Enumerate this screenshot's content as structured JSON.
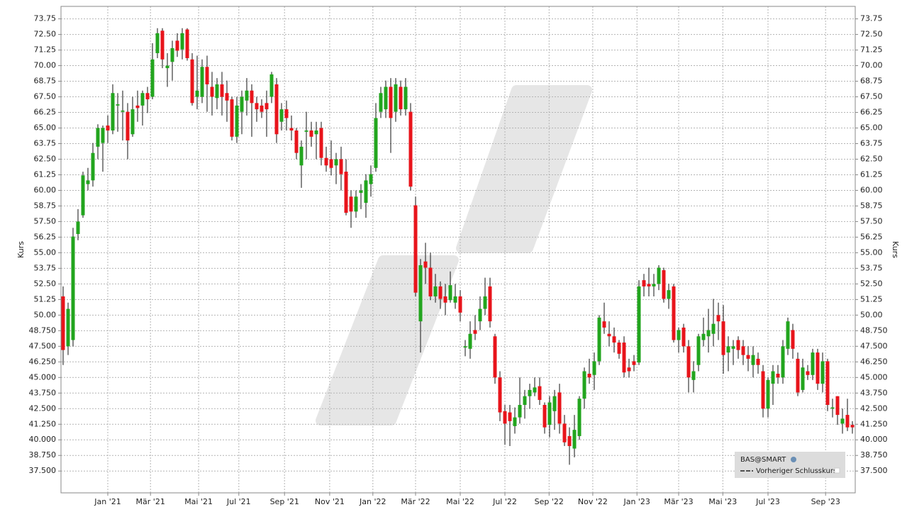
{
  "chart_data": {
    "type": "candlestick",
    "y_label": "Kurs",
    "up_color": "#22a51e",
    "down_color": "#e8141b",
    "grid": true,
    "legend": {
      "source": "BAS@SMART",
      "items": [
        "Vorheriger Schlusskurs"
      ]
    },
    "ylim": [
      35.75,
      74.75
    ],
    "yticks": [
      {
        "value": 37.5,
        "label": "37.500"
      },
      {
        "value": 38.75,
        "label": "38.750"
      },
      {
        "value": 40,
        "label": "40.000"
      },
      {
        "value": 41.25,
        "label": "41.250"
      },
      {
        "value": 42.5,
        "label": "42.500"
      },
      {
        "value": 43.75,
        "label": "43.750"
      },
      {
        "value": 45,
        "label": "45.000"
      },
      {
        "value": 46.25,
        "label": "46.250"
      },
      {
        "value": 47.5,
        "label": "47.500"
      },
      {
        "value": 48.75,
        "label": "48.750"
      },
      {
        "value": 50,
        "label": "50.00"
      },
      {
        "value": 51.25,
        "label": "51.25"
      },
      {
        "value": 52.5,
        "label": "52.50"
      },
      {
        "value": 53.75,
        "label": "53.75"
      },
      {
        "value": 55,
        "label": "55.00"
      },
      {
        "value": 56.25,
        "label": "56.25"
      },
      {
        "value": 57.5,
        "label": "57.50"
      },
      {
        "value": 58.75,
        "label": "58.75"
      },
      {
        "value": 60,
        "label": "60.00"
      },
      {
        "value": 61.25,
        "label": "61.25"
      },
      {
        "value": 62.5,
        "label": "62.50"
      },
      {
        "value": 63.75,
        "label": "63.75"
      },
      {
        "value": 65,
        "label": "65.00"
      },
      {
        "value": 66.25,
        "label": "66.25"
      },
      {
        "value": 67.5,
        "label": "67.50"
      },
      {
        "value": 68.75,
        "label": "68.75"
      },
      {
        "value": 70,
        "label": "70.00"
      },
      {
        "value": 71.25,
        "label": "71.25"
      },
      {
        "value": 72.5,
        "label": "72.50"
      },
      {
        "value": 73.75,
        "label": "73.75"
      }
    ],
    "xticks": [
      {
        "value": 9,
        "label": "Jan '21"
      },
      {
        "value": 17.6,
        "label": "Mär '21"
      },
      {
        "value": 27.3,
        "label": "Mai '21"
      },
      {
        "value": 35.4,
        "label": "Jul '21"
      },
      {
        "value": 44.6,
        "label": "Sep '21"
      },
      {
        "value": 53.7,
        "label": "Nov '21"
      },
      {
        "value": 62.4,
        "label": "Jan '22"
      },
      {
        "value": 71,
        "label": "Mär '22"
      },
      {
        "value": 80,
        "label": "Mai '22"
      },
      {
        "value": 89,
        "label": "Jul '22"
      },
      {
        "value": 97.9,
        "label": "Sep '22"
      },
      {
        "value": 106.7,
        "label": "Nov '22"
      },
      {
        "value": 115.6,
        "label": "Jan '23"
      },
      {
        "value": 124,
        "label": "Mär '23"
      },
      {
        "value": 132.9,
        "label": "Mai '23"
      },
      {
        "value": 142,
        "label": "Jul '23"
      },
      {
        "value": 153.6,
        "label": "Sep '23"
      }
    ],
    "categories": [
      null,
      null,
      null,
      null,
      null,
      null,
      null,
      null,
      null,
      null,
      null,
      null,
      null,
      null,
      null,
      null,
      null,
      null,
      null,
      null,
      null,
      null,
      null,
      null,
      null,
      null,
      null,
      null,
      null,
      null,
      null,
      null,
      null,
      null,
      null,
      null,
      null,
      null,
      null,
      null,
      null,
      null,
      null,
      null,
      null,
      null,
      null,
      null,
      null,
      null,
      null,
      null,
      null,
      null,
      null,
      null,
      null,
      null,
      null,
      null,
      null,
      null,
      null,
      null,
      null,
      null,
      null,
      null,
      null,
      null,
      null,
      null,
      null,
      null,
      null,
      null,
      null,
      null,
      null,
      null,
      null,
      null,
      null,
      null,
      null,
      null,
      null,
      null,
      null,
      null,
      null,
      null,
      null,
      null,
      null,
      null,
      null,
      null,
      null,
      null,
      null,
      null,
      null,
      null,
      null,
      null,
      null,
      null,
      null,
      null,
      null,
      null,
      null,
      null,
      null,
      null,
      null,
      null,
      null,
      null,
      null,
      null,
      null,
      null,
      null,
      null,
      null,
      null,
      null,
      null,
      null,
      null,
      null,
      null,
      null,
      null,
      null,
      null,
      null,
      null,
      null,
      null,
      null,
      null,
      null,
      null,
      null,
      null,
      null,
      null,
      null,
      null,
      null,
      null,
      null,
      null,
      null,
      null,
      null,
      null
    ],
    "open": [
      51.5,
      47.5,
      48,
      56.5,
      58,
      60.5,
      60.8,
      63.5,
      63.8,
      65.2,
      64.8,
      66.8,
      66.3,
      66.3,
      64.5,
      66.8,
      66.8,
      67.8,
      67.5,
      71,
      72.8,
      69.8,
      70.3,
      72,
      71.3,
      72.9,
      70.5,
      67.5,
      67.5,
      69.9,
      68.3,
      67.4,
      68.5,
      67.8,
      67.3,
      64.3,
      66.3,
      67.2,
      68,
      67,
      66.8,
      67,
      67.5,
      68.5,
      65.5,
      66.5,
      65,
      64.8,
      62,
      64.7,
      64.8,
      64.5,
      65,
      62.6,
      62.5,
      62,
      62.5,
      61.5,
      59.5,
      58.3,
      59.8,
      59,
      60.5,
      61.8,
      66.3,
      66.5,
      68.3,
      66.3,
      68.3,
      66.5,
      66.3,
      58.8,
      49.5,
      54.3,
      53.8,
      51.5,
      52.3,
      51.5,
      51.2,
      51,
      51.5,
      47.4,
      47.3,
      48.8,
      49.5,
      50.5,
      52.3,
      48.3,
      45,
      42.3,
      42.2,
      41.1,
      41.8,
      42.8,
      43.5,
      43.8,
      44.3,
      42.8,
      41.2,
      42.3,
      43.8,
      41.3,
      40.3,
      39.3,
      40.3,
      43.3,
      45.3,
      45.2,
      46.3,
      49.5,
      48.5,
      48.3,
      47.8,
      47.8,
      45.8,
      46.3,
      46.2,
      52.8,
      52.5,
      52.3,
      52.5,
      53.6,
      51.3,
      52.3,
      48,
      49,
      47.5,
      44.8,
      46,
      48,
      48.3,
      48.5,
      50,
      49.5,
      47,
      47.3,
      48,
      47.5,
      46.8,
      46,
      46.5,
      45.5,
      42.5,
      44.5,
      45.3,
      45,
      47.3,
      48.8,
      46.5,
      44,
      45.5,
      45.2,
      47,
      44.5,
      46.3,
      42.5,
      43.5,
      41.3,
      42,
      41.2
    ],
    "high": [
      52.3,
      51,
      57,
      58.5,
      61.5,
      61.8,
      63.8,
      65.3,
      65.2,
      66,
      68.5,
      67.8,
      68,
      67,
      67.5,
      68,
      68,
      68.3,
      71.8,
      73,
      73,
      71,
      72,
      72.6,
      73,
      73,
      71,
      70.8,
      70.5,
      70.8,
      69.5,
      69,
      69.5,
      68.8,
      67.5,
      67.5,
      68,
      69,
      68.5,
      67.5,
      67.3,
      68,
      69.5,
      69,
      67,
      67.2,
      66,
      65,
      64,
      66.3,
      65.5,
      65.5,
      65.5,
      63.5,
      64,
      63,
      63.5,
      62.5,
      60,
      60,
      60.5,
      61.3,
      62,
      67,
      68.3,
      68.8,
      69,
      69,
      68.8,
      69,
      67,
      59.5,
      54.5,
      55.8,
      55,
      53.3,
      52.7,
      52.5,
      53.5,
      52.5,
      52,
      48,
      49.5,
      50,
      51.5,
      53,
      53,
      48.5,
      45.5,
      42.8,
      42.8,
      42.6,
      45,
      44,
      44.5,
      45,
      45,
      43,
      43.5,
      44,
      44.5,
      42,
      41,
      42,
      43.5,
      45.8,
      46.5,
      47,
      50,
      51,
      49.5,
      49,
      48,
      48.3,
      46.5,
      46.8,
      52.8,
      53.3,
      53.8,
      53.3,
      54,
      53.8,
      52.5,
      52.5,
      49,
      49.3,
      48,
      46.3,
      48.5,
      49.8,
      50.5,
      51.3,
      51,
      50.8,
      48.3,
      48,
      48.3,
      48,
      47.5,
      47.5,
      47,
      46,
      45,
      46,
      46,
      48,
      49.8,
      49.3,
      47,
      46.5,
      46,
      47.3,
      47.3,
      47,
      46.5,
      43.3,
      43.5,
      42.5,
      43.3,
      41.5
    ],
    "low": [
      46,
      46.8,
      47.5,
      56,
      57.8,
      60,
      60.3,
      62.5,
      61.5,
      63.8,
      64.5,
      64.7,
      64,
      62.5,
      64.3,
      65.5,
      65.2,
      66.2,
      67.3,
      70.6,
      69.8,
      68.3,
      68.8,
      70.7,
      70.5,
      70.4,
      66.8,
      66.5,
      67,
      66.3,
      66,
      66.5,
      66,
      65.5,
      64,
      63.8,
      64.5,
      66,
      64.3,
      65.5,
      65.8,
      64.3,
      67,
      63.8,
      64.8,
      64.8,
      64,
      62.5,
      60.2,
      62.5,
      63.5,
      62.5,
      62,
      61.5,
      61.2,
      60.5,
      60,
      58,
      57,
      57.8,
      58.5,
      57.8,
      59.5,
      61.5,
      65.8,
      65.8,
      63,
      65.5,
      66,
      66,
      60,
      51.5,
      47,
      52.5,
      51.2,
      51,
      50.5,
      50,
      51,
      50.5,
      49.5,
      46.7,
      46.5,
      48,
      48.8,
      50,
      49,
      44.5,
      41.5,
      39.6,
      39.5,
      40.5,
      41.3,
      41.7,
      42.5,
      43.5,
      42.8,
      40.5,
      40.2,
      40.8,
      40.5,
      39.5,
      38,
      38.6,
      40,
      42.5,
      44.5,
      44,
      46,
      48.5,
      47.5,
      47,
      46.5,
      45,
      45,
      45.5,
      46,
      51.5,
      51.5,
      51.5,
      52,
      51,
      50.5,
      47.8,
      47,
      47,
      43.8,
      43.8,
      45.5,
      47.5,
      47,
      47.5,
      48,
      45.3,
      45.5,
      46,
      46.5,
      46,
      45.5,
      45,
      45.3,
      41.8,
      41.8,
      42.8,
      44.5,
      44.5,
      46.8,
      46.5,
      43.5,
      43.8,
      44.8,
      44.8,
      44,
      43.8,
      42.3,
      41.8,
      41.2,
      40.5,
      40.7,
      40.5
    ],
    "close": [
      47.2,
      50.5,
      56.3,
      57.5,
      61.2,
      60.8,
      63,
      65,
      65,
      64.8,
      67.8,
      66.9,
      66.4,
      64,
      66.5,
      66.6,
      67.8,
      67.3,
      70.5,
      72.6,
      70.5,
      70,
      71.4,
      71.2,
      72.6,
      70.6,
      67,
      68,
      69.9,
      68.5,
      67.5,
      68.5,
      67.5,
      67.2,
      64.3,
      66.8,
      67.5,
      68,
      67,
      66.5,
      66.3,
      66.5,
      69.3,
      64.5,
      66.5,
      65.8,
      64.8,
      63,
      63.5,
      64.8,
      64.3,
      64.8,
      62.6,
      62,
      61.8,
      62.5,
      61.3,
      58.2,
      58.3,
      59.5,
      60,
      60.8,
      61.3,
      65.8,
      67.8,
      68.3,
      65.8,
      68.5,
      66.5,
      68.3,
      60.3,
      51.8,
      54,
      53.8,
      51.5,
      52.3,
      51.3,
      51,
      52.4,
      51.5,
      50.2,
      47.5,
      48.5,
      48.5,
      50.5,
      51.5,
      49.5,
      45,
      42.2,
      41.3,
      41.5,
      41.8,
      42.8,
      43.5,
      44,
      44.2,
      43.2,
      41,
      43,
      43.5,
      41.3,
      39.8,
      39.5,
      40.8,
      43.3,
      45.5,
      45,
      46.3,
      49.8,
      49,
      48.3,
      47.8,
      46.9,
      45.4,
      45.5,
      46,
      52.3,
      52.3,
      52.3,
      52.5,
      53.8,
      51.3,
      52,
      48,
      48.8,
      47.5,
      45,
      45.5,
      48.3,
      48.5,
      48.8,
      49.3,
      49.5,
      46.8,
      47.5,
      47.5,
      47.2,
      46.8,
      46.5,
      46.8,
      46,
      42.5,
      44.8,
      45.5,
      45,
      47.5,
      49.5,
      47.3,
      43.8,
      45.8,
      45.2,
      47,
      44.5,
      46.3,
      42.8,
      42.6,
      42,
      41.7,
      41,
      41
    ]
  }
}
